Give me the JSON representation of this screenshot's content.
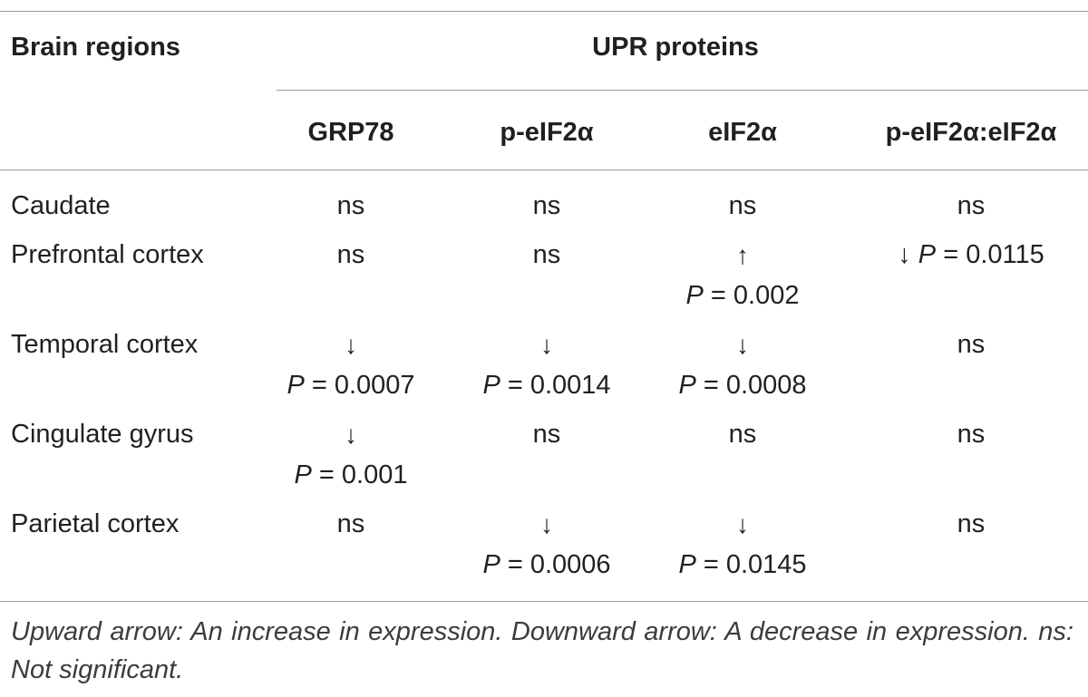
{
  "table": {
    "header": {
      "row_label": "Brain regions",
      "group_label": "UPR proteins",
      "columns": [
        "GRP78",
        "p-eIF2α",
        "eIF2α",
        "p-eIF2α:eIF2α"
      ]
    },
    "rows": [
      {
        "region": "Caudate",
        "cells": [
          {
            "text": "ns"
          },
          {
            "text": "ns"
          },
          {
            "text": "ns"
          },
          {
            "text": "ns"
          }
        ]
      },
      {
        "region": "Prefrontal cortex",
        "cells": [
          {
            "text": "ns"
          },
          {
            "text": "ns"
          },
          {
            "arrow": "↑",
            "p_label": "P",
            "p_value": "= 0.002"
          },
          {
            "arrow": "↓",
            "p_label": "P",
            "p_value": "= 0.0115",
            "inline": true
          }
        ]
      },
      {
        "region": "Temporal cortex",
        "cells": [
          {
            "arrow": "↓",
            "p_label": "P",
            "p_value": "= 0.0007"
          },
          {
            "arrow": "↓",
            "p_label": "P",
            "p_value": "= 0.0014"
          },
          {
            "arrow": "↓",
            "p_label": "P",
            "p_value": "= 0.0008"
          },
          {
            "text": "ns"
          }
        ]
      },
      {
        "region": "Cingulate gyrus",
        "cells": [
          {
            "arrow": "↓",
            "p_label": "P",
            "p_value": "= 0.001"
          },
          {
            "text": "ns"
          },
          {
            "text": "ns"
          },
          {
            "text": "ns"
          }
        ]
      },
      {
        "region": "Parietal cortex",
        "cells": [
          {
            "text": "ns"
          },
          {
            "arrow": "↓",
            "p_label": "P",
            "p_value": "= 0.0006"
          },
          {
            "arrow": "↓",
            "p_label": "P",
            "p_value": "= 0.0145"
          },
          {
            "text": "ns"
          }
        ]
      }
    ]
  },
  "footnote": "Upward arrow: An increase in expression. Downward arrow: A decrease in expression. ns: Not significant."
}
